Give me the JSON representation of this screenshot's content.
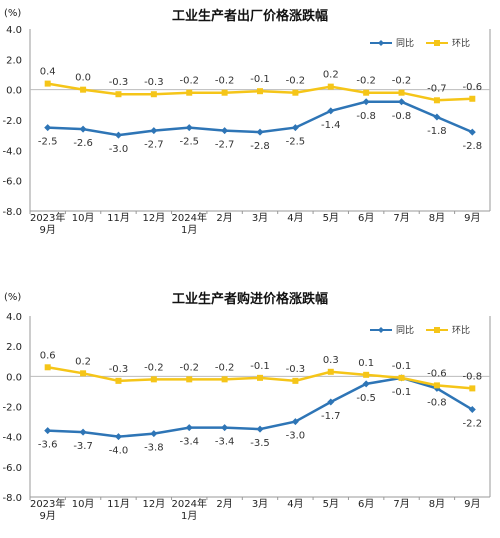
{
  "chart_data": [
    {
      "type": "line",
      "title": "工业生产者出厂价格涨跌幅",
      "unit": "(%)",
      "categories": [
        [
          "2023年",
          "9月"
        ],
        [
          "10月"
        ],
        [
          "11月"
        ],
        [
          "12月"
        ],
        [
          "2024年",
          "1月"
        ],
        [
          "2月"
        ],
        [
          "3月"
        ],
        [
          "4月"
        ],
        [
          "5月"
        ],
        [
          "6月"
        ],
        [
          "7月"
        ],
        [
          "8月"
        ],
        [
          "9月"
        ]
      ],
      "ylim": [
        -8.0,
        4.0
      ],
      "yticks": [
        "4.0",
        "2.0",
        "0.0",
        "-2.0",
        "-4.0",
        "-6.0",
        "-8.0"
      ],
      "ytick_values": [
        4,
        2,
        0,
        -2,
        -4,
        -6,
        -8
      ],
      "legend_position": "top-right",
      "grid": false,
      "series": [
        {
          "name": "同比",
          "color": "#2e75b6",
          "values": [
            -2.5,
            -2.6,
            -3.0,
            -2.7,
            -2.5,
            -2.7,
            -2.8,
            -2.5,
            -1.4,
            -0.8,
            -0.8,
            -1.8,
            -2.8
          ],
          "labels": [
            "-2.5",
            "-2.6",
            "-3.0",
            "-2.7",
            "-2.5",
            "-2.7",
            "-2.8",
            "-2.5",
            "-1.4",
            "-0.8",
            "-0.8",
            "-1.8",
            "-2.8"
          ]
        },
        {
          "name": "环比",
          "color": "#f5c518",
          "values": [
            0.4,
            0.0,
            -0.3,
            -0.3,
            -0.2,
            -0.2,
            -0.1,
            -0.2,
            0.2,
            -0.2,
            -0.2,
            -0.7,
            -0.6
          ],
          "labels": [
            "0.4",
            "0.0",
            "-0.3",
            "-0.3",
            "-0.2",
            "-0.2",
            "-0.1",
            "-0.2",
            "0.2",
            "-0.2",
            "-0.2",
            "-0.7",
            "-0.6"
          ]
        }
      ]
    },
    {
      "type": "line",
      "title": "工业生产者购进价格涨跌幅",
      "unit": "(%)",
      "categories": [
        [
          "2023年",
          "9月"
        ],
        [
          "10月"
        ],
        [
          "11月"
        ],
        [
          "12月"
        ],
        [
          "2024年",
          "1月"
        ],
        [
          "2月"
        ],
        [
          "3月"
        ],
        [
          "4月"
        ],
        [
          "5月"
        ],
        [
          "6月"
        ],
        [
          "7月"
        ],
        [
          "8月"
        ],
        [
          "9月"
        ]
      ],
      "ylim": [
        -8.0,
        4.0
      ],
      "yticks": [
        "4.0",
        "2.0",
        "0.0",
        "-2.0",
        "-4.0",
        "-6.0",
        "-8.0"
      ],
      "ytick_values": [
        4,
        2,
        0,
        -2,
        -4,
        -6,
        -8
      ],
      "legend_position": "top-right",
      "grid": false,
      "series": [
        {
          "name": "同比",
          "color": "#2e75b6",
          "values": [
            -3.6,
            -3.7,
            -4.0,
            -3.8,
            -3.4,
            -3.4,
            -3.5,
            -3.0,
            -1.7,
            -0.5,
            -0.1,
            -0.8,
            -2.2
          ],
          "labels": [
            "-3.6",
            "-3.7",
            "-4.0",
            "-3.8",
            "-3.4",
            "-3.4",
            "-3.5",
            "-3.0",
            "-1.7",
            "-0.5",
            "-0.1",
            "-0.8",
            "-2.2"
          ]
        },
        {
          "name": "环比",
          "color": "#f5c518",
          "values": [
            0.6,
            0.2,
            -0.3,
            -0.2,
            -0.2,
            -0.2,
            -0.1,
            -0.3,
            0.3,
            0.1,
            -0.1,
            -0.6,
            -0.8
          ],
          "labels": [
            "0.6",
            "0.2",
            "-0.3",
            "-0.2",
            "-0.2",
            "-0.2",
            "-0.1",
            "-0.3",
            "0.3",
            "0.1",
            "-0.1",
            "-0.6",
            "-0.8"
          ]
        }
      ]
    }
  ]
}
